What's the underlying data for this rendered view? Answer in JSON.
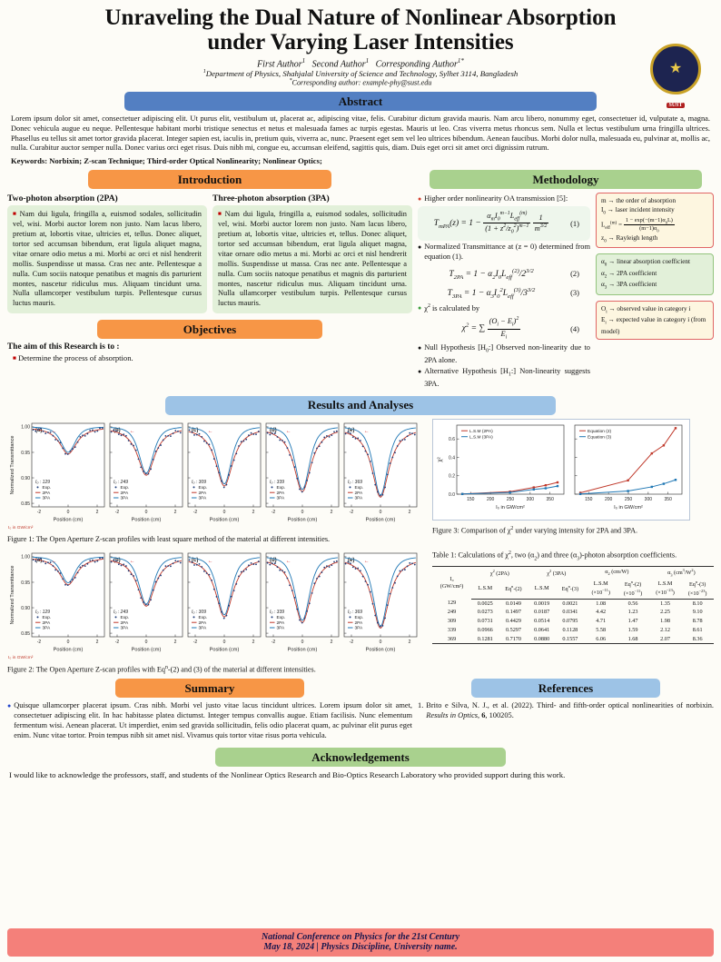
{
  "palette": {
    "bar_blue": "#537fc2",
    "bar_light_blue": "#9dc3e6",
    "bar_orange": "#f79646",
    "bar_green": "#a9d18e",
    "footer_salmon": "#f4807a",
    "bullet_red": "#c00000"
  },
  "icons": {
    "square_bullet": "■",
    "dot_bullet": "●",
    "logo_symbol": "★"
  },
  "header": {
    "title": "Unraveling the Dual Nature of Nonlinear Absorption under Varying Laser Intensities",
    "authors_html": "First Author<sup>1</sup>&nbsp;&nbsp; Second Author<sup>1</sup>&nbsp;&nbsp; Corresponding Author<sup>1*</sup>",
    "affiliation_html": "<sup>1</sup>Department of Physics, Shahjalal University of Science and Technology, Sylhet 3114, Bangladesh",
    "email_html": "<sup>*</sup>Corresponding author: example-phy@sust.edu",
    "logo_ribbon": "SUST"
  },
  "abstract": {
    "heading": "Abstract",
    "body": "Lorem ipsum dolor sit amet, consectetuer adipiscing elit. Ut purus elit, vestibulum ut, placerat ac, adipiscing vitae, felis. Curabitur dictum gravida mauris. Nam arcu libero, nonummy eget, consectetuer id, vulputate a, magna. Donec vehicula augue eu neque. Pellentesque habitant morbi tristique senectus et netus et malesuada fames ac turpis egestas. Mauris ut leo. Cras viverra metus rhoncus sem. Nulla et lectus vestibulum urna fringilla ultrices. Phasellus eu tellus sit amet tortor gravida placerat. Integer sapien est, iaculis in, pretium quis, viverra ac, nunc. Praesent eget sem vel leo ultrices bibendum. Aenean faucibus. Morbi dolor nulla, malesuada eu, pulvinar at, mollis ac, nulla. Curabitur auctor semper nulla. Donec varius orci eget risus. Duis nibh mi, congue eu, accumsan eleifend, sagittis quis, diam. Duis eget orci sit amet orci dignissim rutrum.",
    "keywords": "Keywords: Norbixin; Z-scan Technique; Third-order Optical Nonlinearity; Nonlinear Optics;"
  },
  "introduction": {
    "heading": "Introduction",
    "col1": {
      "title": "Two-photon absorption (2PA)",
      "body": "Nam dui ligula, fringilla a, euismod sodales, sollicitudin vel, wisi. Morbi auctor lorem non justo. Nam lacus libero, pretium at, lobortis vitae, ultricies et, tellus. Donec aliquet, tortor sed accumsan bibendum, erat ligula aliquet magna, vitae ornare odio metus a mi. Morbi ac orci et nisl hendrerit mollis. Suspendisse ut massa. Cras nec ante. Pellentesque a nulla. Cum sociis natoque penatibus et magnis dis parturient montes, nascetur ridiculus mus. Aliquam tincidunt urna. Nulla ullamcorper vestibulum turpis. Pellentesque cursus luctus mauris."
    },
    "col2": {
      "title": "Three-photon absorption (3PA)",
      "body": "Nam dui ligula, fringilla a, euismod sodales, sollicitudin vel, wisi. Morbi auctor lorem non justo. Nam lacus libero, pretium at, lobortis vitae, ultricies et, tellus. Donec aliquet, tortor sed accumsan bibendum, erat ligula aliquet magna, vitae ornare odio metus a mi. Morbi ac orci et nisl hendrerit mollis. Suspendisse ut massa. Cras nec ante. Pellentesque a nulla. Cum sociis natoque penatibus et magnis dis parturient montes, nascetur ridiculus mus. Aliquam tincidunt urna. Nulla ullamcorper vestibulum turpis. Pellentesque cursus luctus mauris."
    }
  },
  "objectives": {
    "heading": "Objectives",
    "lead": "The aim of this Research is to :",
    "item": "Determine the process of absorption."
  },
  "methodology": {
    "heading": "Methodology",
    "b1": "Higher order nonlinearity OA transmission [5]:",
    "eq1_html": "T<sub>mPA</sub>(z) = 1 − <span class='frac'><span>α<sub>m</sub>I<sub>0</sub><sup>m−1</sup>L<sub>eff</sub><sup>(m)</sup></span><span>(1 + z<sup>2</sup>/z<sub>0</sub><sup>2</sup>)<sup>m−1</sup></span></span> <span class='frac'><span>1</span><span>m<sup>3/2</sup></span></span>",
    "eq1_no": "(1)",
    "b2": "Normalized Transmittance at (z = 0) determined from equation (1).",
    "eq2_html": "T<sub>2PA</sub> = 1 − α<sub>2</sub>I<sub>0</sub>L<sub>eff</sub><sup>(2)</sup>/2<sup>3/2</sup>",
    "eq2_no": "(2)",
    "eq3_html": "T<sub>3PA</sub> = 1 − α<sub>3</sub>I<sub>0</sub><sup>2</sup>L<sub>eff</sub><sup>(3)</sup>/3<sup>3/2</sup>",
    "eq3_no": "(3)",
    "b3_html": "χ<sup>2</sup> is calculated by",
    "eq4_html": "χ<sup>2</sup> = ∑ <span class='frac'><span>(O<sub>i</sub> − E<sub>i</sub>)<sup>2</sup></span><span>E<sub>i</sub></span></span>",
    "eq4_no": "(4)",
    "b4_html": "Null Hypothesis [H<sub>0</sub>:] Observed non-linearity due to 2PA alone.",
    "b5_html": "Alternative Hypothesis [H<sub>1</sub>:] Non-linearity suggests 3PA.",
    "box1": {
      "l1": "m → the order of absorption",
      "l2_html": "I<sub>0</sub> → laser incident intensity",
      "l3_html": "L<sub>eff</sub><sup>(m)</sup> = <span class='frac'><span>1 − exp(−(m−1)α<sub>0</sub>L)</span><span>(m−1)α<sub>0</sub></span></span>",
      "l4_html": "z<sub>0</sub> → Rayleigh length"
    },
    "box2": {
      "l1_html": "α<sub>0</sub> → linear absorption coefficient",
      "l2_html": "α<sub>2</sub> → 2PA coefficient",
      "l3_html": "α<sub>3</sub> → 3PA coefficient"
    },
    "box3": {
      "l1_html": "O<sub>i</sub> → observed value in category i",
      "l2_html": "E<sub>i</sub> → expected value in category i (from model)"
    }
  },
  "results": {
    "heading": "Results and Analyses",
    "fig1_caption": "Figure 1: The Open Aperture Z-scan profiles with least square method of the material at different intensities.",
    "fig2_caption_html": "Figure 2: The Open Aperture Z-scan profiles with Eq<sup>n</sup>-(2) and (3) of the material at different intensities.",
    "fig3_caption_html": "Figure 3: Comparison of χ<sup>2</sup> under varying intensity for 2PA and 3PA.",
    "table": {
      "caption_html": "Table 1: Calculations of χ<sup>2</sup>, two (α<sub>2</sub>) and three (α<sub>3</sub>)-photon absorption coefficients.",
      "col1_top": "I₀",
      "col1_bottom": "(GW/cm²)",
      "groups": [
        {
          "label_html": "χ<sup>2</sup> (2PA)",
          "subs_html": [
            "L.S.M",
            "Eq<sup>n</sup>-(2)"
          ],
          "units_html": [
            "",
            ""
          ]
        },
        {
          "label_html": "χ<sup>2</sup> (3PA)",
          "subs_html": [
            "L.S.M",
            "Eq<sup>n</sup>-(3)"
          ],
          "units_html": [
            "",
            ""
          ]
        },
        {
          "label_html": "α<sub>2</sub> (cm/W)",
          "subs_html": [
            "L.S.M",
            "Eq<sup>n</sup>-(2)"
          ],
          "units_html": [
            "(×10<sup>−11</sup>)",
            "(×10<sup>−11</sup>)"
          ]
        },
        {
          "label_html": "α<sub>3</sub> (cm<sup>3</sup>/W<sup>2</sup>)",
          "subs_html": [
            "L.S.M",
            "Eq<sup>n</sup>-(3)"
          ],
          "units_html": [
            "(×10<sup>−23</sup>)",
            "(×10<sup>−23</sup>)"
          ]
        }
      ],
      "rows": [
        [
          "129",
          "0.0025",
          "0.0149",
          "0.0019",
          "0.0021",
          "1.08",
          "0.56",
          "1.35",
          "8.10"
        ],
        [
          "249",
          "0.0273",
          "0.1497",
          "0.0187",
          "0.0341",
          "4.42",
          "1.23",
          "2.25",
          "9.10"
        ],
        [
          "309",
          "0.0731",
          "0.4429",
          "0.0514",
          "0.0795",
          "4.71",
          "1.47",
          "1.98",
          "8.78"
        ],
        [
          "339",
          "0.0966",
          "0.5297",
          "0.0641",
          "0.1128",
          "5.58",
          "1.59",
          "2.12",
          "8.61"
        ],
        [
          "369",
          "0.1281",
          "0.7170",
          "0.0880",
          "0.1557",
          "6.06",
          "1.68",
          "2.07",
          "8.36"
        ]
      ]
    }
  },
  "summary": {
    "heading": "Summary",
    "body": "Quisque ullamcorper placerat ipsum. Cras nibh. Morbi vel justo vitae lacus tincidunt ultrices. Lorem ipsum dolor sit amet, consectetuer adipiscing elit. In hac habitasse platea dictumst. Integer tempus convallis augue. Etiam facilisis. Nunc elementum fermentum wisi. Aenean placerat. Ut imperdiet, enim sed gravida sollicitudin, felis odio placerat quam, ac pulvinar elit purus eget enim. Nunc vitae tortor. Proin tempus nibh sit amet nisl. Vivamus quis tortor vitae risus porta vehicula."
  },
  "references": {
    "heading": "References",
    "item1_num": "1.",
    "item1_html": "Brito e Silva, N. J., et al. (2022). Third- and fifth-order optical nonlinearities of norbixin. <i>Results in Optics</i>, <b>6</b>, 100205."
  },
  "acknowledgements": {
    "heading": "Acknowledgements",
    "body": "I would like to acknowledge the professors, staff, and students of the Nonlinear Optics Research and Bio-Optics Research Laboratory who provided support during this work."
  },
  "footer": {
    "line1": "National Conference on Physics for the 21st Century",
    "line2": "May 18, 2024  |  Physics Discipline, University name."
  },
  "chart_data": [
    {
      "type": "line",
      "figure": "Figure 1",
      "ylabel": "Normalized Transmittance",
      "xlabel": "Position (cm)",
      "xlim": [
        -2.5,
        2.5
      ],
      "ylim": [
        0.843,
        1.007
      ],
      "yticks": [
        1.0,
        0.95,
        0.9,
        0.85
      ],
      "xticks": [
        -2,
        0,
        2
      ],
      "legend": [
        "Exp.",
        "2PA",
        "3PA"
      ],
      "colors": {
        "exp": "#1f3d7a",
        "pa2": "#c0392b",
        "pa3": "#1f77b4"
      },
      "note": "I₀ in GW/cm²",
      "note_color": "#c0392b",
      "annotation": {
        "symbol": "←",
        "color": "#d62728"
      },
      "panels": [
        {
          "label": "(a)",
          "I0": 129,
          "min_2pa": 0.947,
          "min_3pa": 0.95
        },
        {
          "label": "(b)",
          "I0": 249,
          "min_2pa": 0.905,
          "min_3pa": 0.909
        },
        {
          "label": "(c)",
          "I0": 309,
          "min_2pa": 0.884,
          "min_3pa": 0.888
        },
        {
          "label": "(d)",
          "I0": 339,
          "min_2pa": 0.873,
          "min_3pa": 0.877
        },
        {
          "label": "(e)",
          "I0": 369,
          "min_2pa": 0.862,
          "min_3pa": 0.866
        }
      ]
    },
    {
      "type": "line",
      "figure": "Figure 2",
      "ylabel": "Normalized Transmittance",
      "xlabel": "Position (cm)",
      "xlim": [
        -2.5,
        2.5
      ],
      "ylim": [
        0.843,
        1.007
      ],
      "yticks": [
        1.0,
        0.95,
        0.9,
        0.85
      ],
      "xticks": [
        -2,
        0,
        2
      ],
      "legend": [
        "Exp.",
        "2PA",
        "3PA"
      ],
      "colors": {
        "exp": "#1f3d7a",
        "pa2": "#c0392b",
        "pa3": "#1f77b4"
      },
      "note": "I₀ in GW/cm²",
      "note_color": "#c0392b",
      "annotation": {
        "symbol": "←",
        "color": "#d62728"
      },
      "panels": [
        {
          "label": "(a)",
          "I0": 129,
          "min_2pa": 0.945,
          "min_3pa": 0.949
        },
        {
          "label": "(b)",
          "I0": 249,
          "min_2pa": 0.903,
          "min_3pa": 0.907
        },
        {
          "label": "(c)",
          "I0": 309,
          "min_2pa": 0.882,
          "min_3pa": 0.886
        },
        {
          "label": "(d)",
          "I0": 339,
          "min_2pa": 0.871,
          "min_3pa": 0.875
        },
        {
          "label": "(e)",
          "I0": 369,
          "min_2pa": 0.86,
          "min_3pa": 0.864
        }
      ]
    },
    {
      "type": "line",
      "figure": "Figure 3",
      "ylabel": "χ²",
      "xlabel": "I₀ in GW/cm²",
      "x": [
        129,
        249,
        309,
        339,
        369
      ],
      "xticks": [
        150,
        200,
        250,
        300,
        350
      ],
      "xlim": [
        115,
        385
      ],
      "ylim": [
        0,
        0.75
      ],
      "yticks": [
        0.0,
        0.2,
        0.4,
        0.6
      ],
      "panels": [
        {
          "series": [
            {
              "name": "L.S.M (2PA)",
              "color": "#c0392b",
              "values": [
                0.0025,
                0.0273,
                0.0731,
                0.0966,
                0.1281
              ]
            },
            {
              "name": "L.S.M (3PA)",
              "color": "#1f77b4",
              "values": [
                0.0019,
                0.0187,
                0.0514,
                0.0641,
                0.088
              ]
            }
          ]
        },
        {
          "series": [
            {
              "name": "Equation (2)",
              "color": "#c0392b",
              "values": [
                0.0149,
                0.1497,
                0.4429,
                0.5297,
                0.717
              ]
            },
            {
              "name": "Equation (3)",
              "color": "#1f77b4",
              "values": [
                0.0021,
                0.0341,
                0.0795,
                0.1128,
                0.1557
              ]
            }
          ]
        }
      ]
    }
  ]
}
